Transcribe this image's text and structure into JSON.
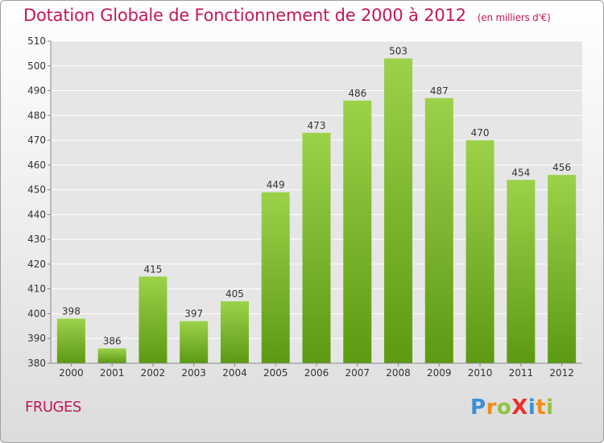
{
  "header": {
    "title": "Dotation Globale de Fonctionnement de 2000 à 2012",
    "unit": "(en milliers d'€)"
  },
  "footer": {
    "place": "FRUGES",
    "brand": "ProXiti",
    "brand_letters": [
      {
        "ch": "P",
        "color": "#3a8fd6"
      },
      {
        "ch": "r",
        "color": "#f08c1a"
      },
      {
        "ch": "o",
        "color": "#8cc43c"
      },
      {
        "ch": "X",
        "color": "#e8322c"
      },
      {
        "ch": "i",
        "color": "#3a8fd6"
      },
      {
        "ch": "t",
        "color": "#f08c1a"
      },
      {
        "ch": "i",
        "color": "#8cc43c"
      }
    ]
  },
  "colors": {
    "title": "#c2185b",
    "bar_top": "#9cd24a",
    "bar_bottom": "#5c9a12",
    "grid": "#ffffff"
  },
  "chart_data": {
    "type": "bar",
    "title": "Dotation Globale de Fonctionnement de 2000 à 2012",
    "subtitle": "(en milliers d'€)",
    "categories": [
      "2000",
      "2001",
      "2002",
      "2003",
      "2004",
      "2005",
      "2006",
      "2007",
      "2008",
      "2009",
      "2010",
      "2011",
      "2012"
    ],
    "values": [
      398,
      386,
      415,
      397,
      405,
      449,
      473,
      486,
      503,
      487,
      470,
      454,
      456
    ],
    "ylim": [
      380,
      510
    ],
    "yticks": [
      380,
      390,
      400,
      410,
      420,
      430,
      440,
      450,
      460,
      470,
      480,
      490,
      500,
      510
    ],
    "grid": true,
    "data_labels": true
  }
}
